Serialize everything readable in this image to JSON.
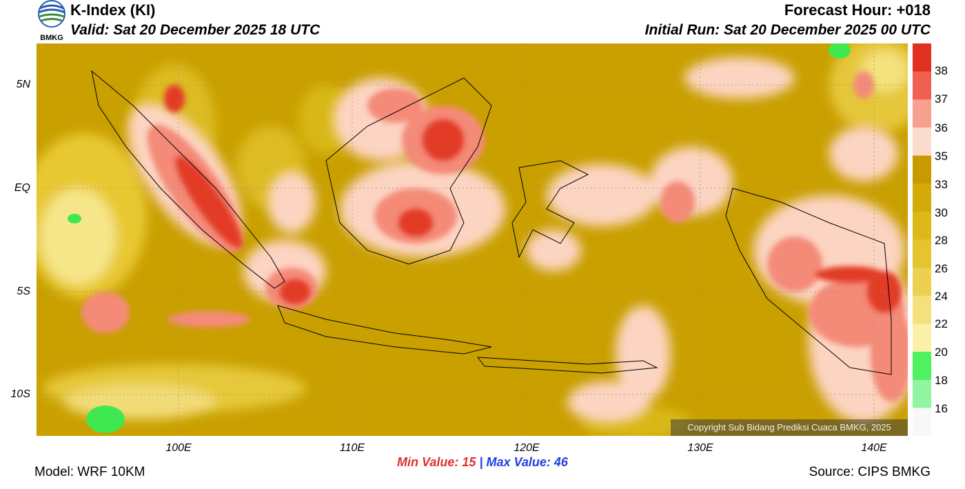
{
  "header": {
    "title": "K-Index (KI)",
    "valid": "Valid: Sat 20 December 2025 18 UTC",
    "forecast_hour": "Forecast Hour: +018",
    "initial_run": "Initial Run: Sat 20 December 2025 00 UTC",
    "logo_text": "BMKG"
  },
  "axes": {
    "lat_labels": [
      "5N",
      "EQ",
      "5S",
      "10S"
    ],
    "lon_labels": [
      "100E",
      "110E",
      "120E",
      "130E",
      "140E"
    ]
  },
  "colorbar": {
    "labels": [
      "38",
      "37",
      "36",
      "35",
      "33",
      "30",
      "28",
      "26",
      "24",
      "22",
      "20",
      "18",
      "16"
    ],
    "colors": [
      "#e03020",
      "#f06050",
      "#f8a090",
      "#fcdccc",
      "#c89a00",
      "#d4aa08",
      "#dcb818",
      "#e6c430",
      "#eed050",
      "#f4e07c",
      "#fcf0a8",
      "#50f060",
      "#90f4a0",
      "#f8f8f8"
    ]
  },
  "stats": {
    "min_label": "Min Value:",
    "min_value": "15",
    "separator": "|",
    "max_label": "Max Value:",
    "max_value": "46"
  },
  "footer": {
    "model": "Model: WRF 10KM",
    "source": "Source: CIPS BMKG",
    "copyright": "Copyright Sub Bidang Prediksi Cuaca BMKG, 2025"
  }
}
